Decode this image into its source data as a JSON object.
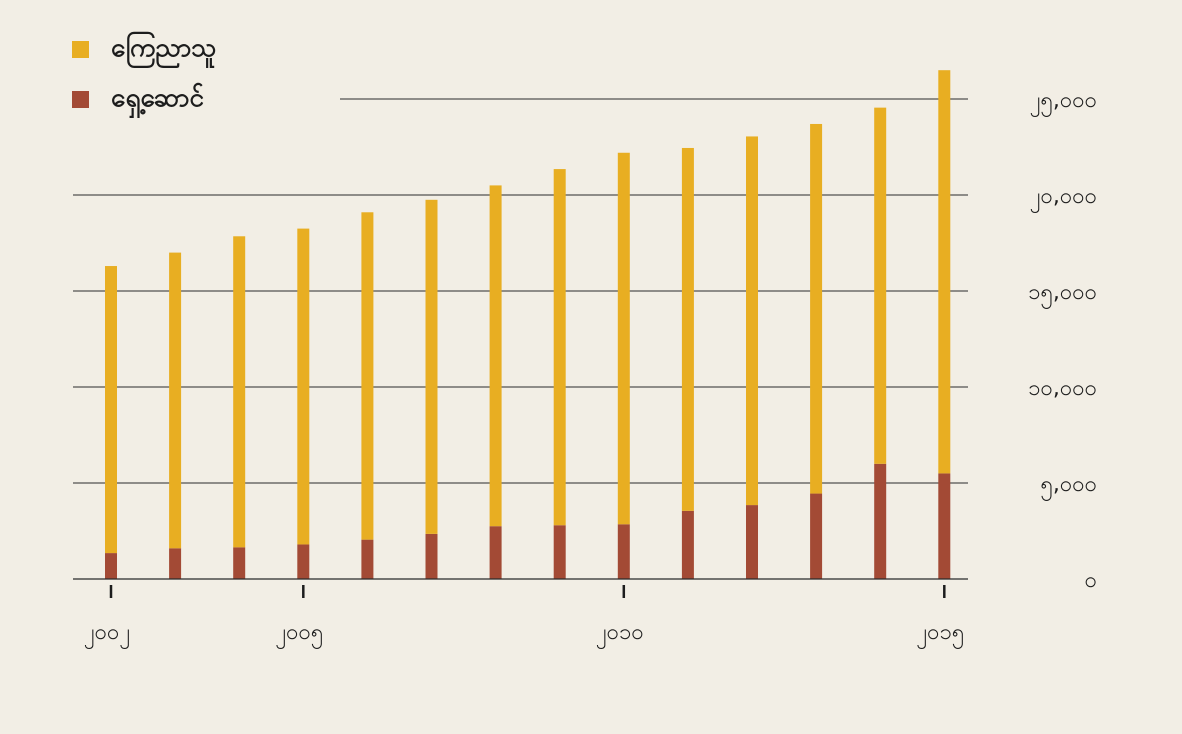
{
  "chart_data": {
    "type": "bar",
    "stacked": true,
    "x": [
      2002,
      2003,
      2004,
      2005,
      2006,
      2007,
      2008,
      2009,
      2010,
      2011,
      2012,
      2013,
      2014,
      2015
    ],
    "x_ticks": [
      {
        "value": 2002,
        "label": "၂၀၀၂"
      },
      {
        "value": 2005,
        "label": "၂၀၀၅"
      },
      {
        "value": 2010,
        "label": "၂၀၁၀"
      },
      {
        "value": 2015,
        "label": "၂၀၁၅"
      }
    ],
    "series": [
      {
        "name": "ရှေ့ဆောင်",
        "color": "#a34a35",
        "values": [
          1350,
          1600,
          1650,
          1800,
          2050,
          2350,
          2750,
          2800,
          2850,
          3550,
          3850,
          4450,
          6000,
          5500
        ]
      },
      {
        "name": "ကြေညာသူ",
        "color": "#e8ae22",
        "values": [
          14950,
          15400,
          16200,
          16450,
          17050,
          17400,
          17750,
          18550,
          19350,
          18900,
          19200,
          19250,
          18550,
          21000
        ]
      }
    ],
    "ylim": [
      0,
      26500
    ],
    "y_ticks": [
      {
        "value": 0,
        "label": "၀"
      },
      {
        "value": 5000,
        "label": "၅,၀၀၀"
      },
      {
        "value": 10000,
        "label": "၁၀,၀၀၀"
      },
      {
        "value": 15000,
        "label": "၁၅,၀၀၀"
      },
      {
        "value": 20000,
        "label": "၂၀,၀၀၀"
      },
      {
        "value": 25000,
        "label": "၂၅,၀၀၀"
      }
    ],
    "y_axis_position": "right",
    "grid": true,
    "legend_position": "top-left",
    "title": "",
    "xlabel": "",
    "ylabel": ""
  }
}
